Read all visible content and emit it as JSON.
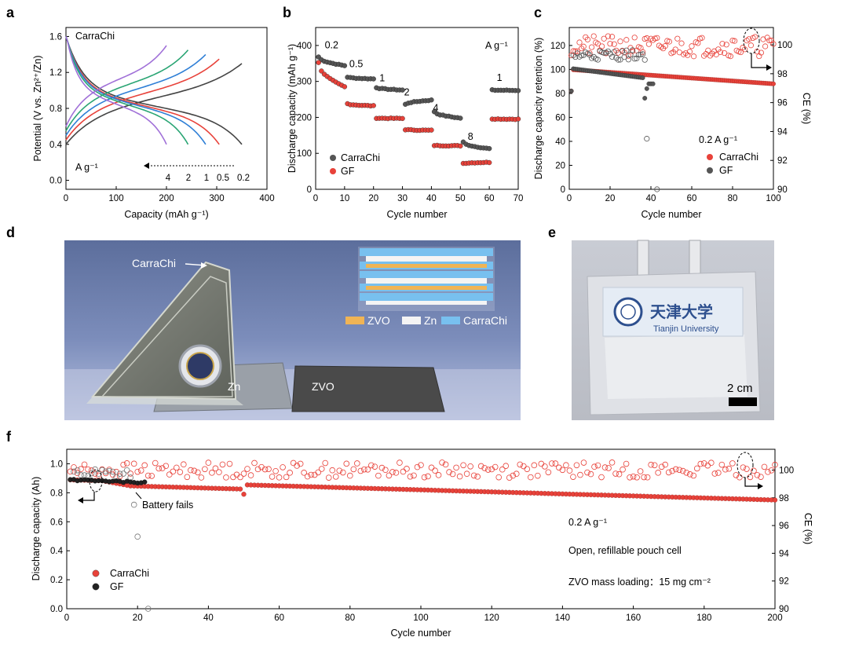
{
  "panel_letters": {
    "a": "a",
    "b": "b",
    "c": "c",
    "d": "d",
    "e": "e",
    "f": "f"
  },
  "chart_data": [
    {
      "panel": "a",
      "type": "line",
      "title": "CarraChi",
      "xlabel": "Capacity (mAh g⁻¹)",
      "ylabel": "Potential (V vs. Zn²⁺/Zn)",
      "xlim": [
        0,
        400
      ],
      "ylim": [
        -0.1,
        1.7
      ],
      "xticks": [
        0,
        100,
        200,
        300,
        400
      ],
      "yticks": [
        0.0,
        0.4,
        0.8,
        1.2,
        1.6
      ],
      "rate_unit": "A g⁻¹",
      "rate_labels": [
        "4",
        "2",
        "1",
        "0.5",
        "0.2"
      ],
      "series": [
        {
          "name": "0.2",
          "color": "#444444",
          "capacity": 350
        },
        {
          "name": "0.5",
          "color": "#e8423a",
          "capacity": 305
        },
        {
          "name": "1",
          "color": "#2f7fd6",
          "capacity": 278
        },
        {
          "name": "2",
          "color": "#2aa574",
          "capacity": 243
        },
        {
          "name": "4",
          "color": "#a070d8",
          "capacity": 200
        }
      ]
    },
    {
      "panel": "b",
      "type": "scatter",
      "xlabel": "Cycle number",
      "ylabel": "Discharge capacity (mAh g⁻¹)",
      "xlim": [
        0,
        70
      ],
      "ylim": [
        0,
        450
      ],
      "xticks": [
        0,
        10,
        20,
        30,
        40,
        50,
        60,
        70
      ],
      "yticks": [
        0,
        100,
        200,
        300,
        400
      ],
      "unit_label": "A g⁻¹",
      "rate_labels": [
        {
          "text": "0.2",
          "x": 5.5,
          "y": 392
        },
        {
          "text": "0.5",
          "x": 14,
          "y": 340
        },
        {
          "text": "1",
          "x": 23,
          "y": 300
        },
        {
          "text": "2",
          "x": 31.5,
          "y": 261
        },
        {
          "text": "4",
          "x": 41.5,
          "y": 217
        },
        {
          "text": "8",
          "x": 53.5,
          "y": 138
        },
        {
          "text": "1",
          "x": 63.5,
          "y": 301
        }
      ],
      "series": [
        {
          "name": "CarraChi",
          "color": "#555555",
          "segments": [
            {
              "x0": 1,
              "x1": 10,
              "start": 368,
              "end": 344
            },
            {
              "x0": 11,
              "x1": 20,
              "start": 312,
              "end": 307
            },
            {
              "x0": 21,
              "x1": 30,
              "start": 283,
              "end": 276
            },
            {
              "x0": 31,
              "x1": 40,
              "start": 236,
              "end": 248
            },
            {
              "x0": 41,
              "x1": 50,
              "start": 216,
              "end": 198
            },
            {
              "x0": 51,
              "x1": 60,
              "start": 131,
              "end": 113
            },
            {
              "x0": 61,
              "x1": 70,
              "start": 276,
              "end": 275
            }
          ]
        },
        {
          "name": "GF",
          "color": "#e8423a",
          "segments": [
            {
              "x0": 1,
              "x1": 10,
              "start": 352,
              "end": 285
            },
            {
              "x0": 11,
              "x1": 20,
              "start": 238,
              "end": 232
            },
            {
              "x0": 21,
              "x1": 30,
              "start": 198,
              "end": 197
            },
            {
              "x0": 31,
              "x1": 40,
              "start": 166,
              "end": 164
            },
            {
              "x0": 41,
              "x1": 50,
              "start": 122,
              "end": 121
            },
            {
              "x0": 51,
              "x1": 60,
              "start": 72,
              "end": 75
            },
            {
              "x0": 61,
              "x1": 70,
              "start": 196,
              "end": 195
            }
          ]
        }
      ]
    },
    {
      "panel": "c",
      "type": "scatter",
      "xlabel": "Cycle number",
      "ylabel": "Discharge capacity retention (%)",
      "ylabel_right": "CE (%)",
      "xlim": [
        0,
        100
      ],
      "ylim": [
        0,
        135
      ],
      "ylim_right": [
        90,
        101.2
      ],
      "xticks": [
        0,
        20,
        40,
        60,
        80,
        100
      ],
      "yticks": [
        0,
        20,
        40,
        60,
        80,
        100,
        120
      ],
      "yticks_right": [
        90,
        92,
        94,
        96,
        98,
        100
      ],
      "rate_label": "0.2 A g⁻¹",
      "series": [
        {
          "name": "CarraChi",
          "color": "#e8423a",
          "retention_start": 100,
          "retention_end": 88,
          "cycles": 100,
          "ce_level": 99.9
        },
        {
          "name": "GF",
          "color": "#555555",
          "retention_start": 100,
          "retention_end": 88,
          "cycles": 43,
          "ce_level": 99.3
        }
      ]
    },
    {
      "panel": "f",
      "type": "scatter",
      "xlabel": "Cycle number",
      "ylabel": "Discharge capacity (Ah)",
      "ylabel_right": "CE (%)",
      "xlim": [
        0,
        200
      ],
      "ylim": [
        0,
        1.1
      ],
      "ylim_right": [
        90,
        101.5
      ],
      "xticks": [
        0,
        20,
        40,
        60,
        80,
        100,
        120,
        140,
        160,
        180,
        200
      ],
      "yticks": [
        0.0,
        0.2,
        0.4,
        0.6,
        0.8,
        1.0
      ],
      "yticks_right": [
        90,
        92,
        94,
        96,
        98,
        100
      ],
      "annotations": {
        "battery_fails": "Battery fails",
        "rate": "0.2 A g⁻¹",
        "cell": "Open, refillable pouch cell",
        "loading": "ZVO mass loading：15 mg cm⁻²"
      },
      "series": [
        {
          "name": "CarraChi",
          "color": "#e8423a",
          "capacity_start": 0.89,
          "capacity_end": 0.75,
          "cycles": 200,
          "ce_level": 100.0
        },
        {
          "name": "GF",
          "color": "#222222",
          "capacity_start": 0.89,
          "capacity_end": 0.87,
          "cycles": 22,
          "ce_level": 99.8
        }
      ]
    }
  ],
  "photo_d": {
    "carrachi_label": "CarraChi",
    "zn_label": "Zn",
    "zvo_label": "ZVO",
    "legend": {
      "zvo": "ZVO",
      "zn": "Zn",
      "carrachi": "CarraChi"
    }
  },
  "photo_e": {
    "logo_text": "天津大学",
    "university": "Tianjin University",
    "scale_bar": "2 cm"
  }
}
